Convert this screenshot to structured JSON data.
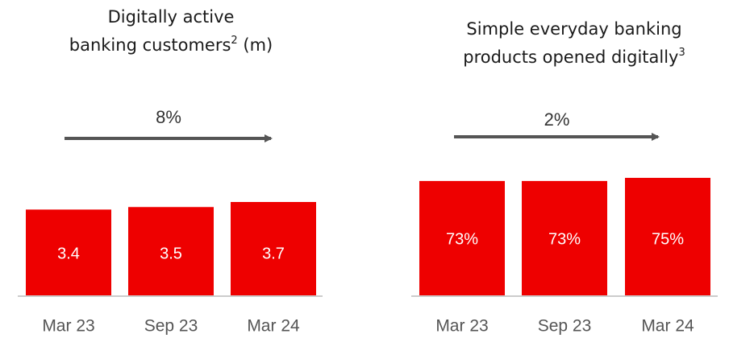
{
  "chart_data": [
    {
      "type": "bar",
      "title": [
        "Digitally active",
        "banking customers"
      ],
      "footnote": "2",
      "unit": "(m)",
      "annotation": "8%",
      "categories": [
        "Mar 23",
        "Sep 23",
        "Mar 24"
      ],
      "values": [
        3.4,
        3.5,
        3.7
      ],
      "color": "#ee0000"
    },
    {
      "type": "bar",
      "title": [
        "Simple everyday banking",
        "products opened digitally"
      ],
      "footnote": "3",
      "annotation": "2%",
      "categories": [
        "Mar 23",
        "Sep 23",
        "Mar 24"
      ],
      "values": [
        73,
        73,
        75
      ],
      "value_labels": [
        "73%",
        "73%",
        "75%"
      ],
      "color": "#ee0000"
    }
  ]
}
